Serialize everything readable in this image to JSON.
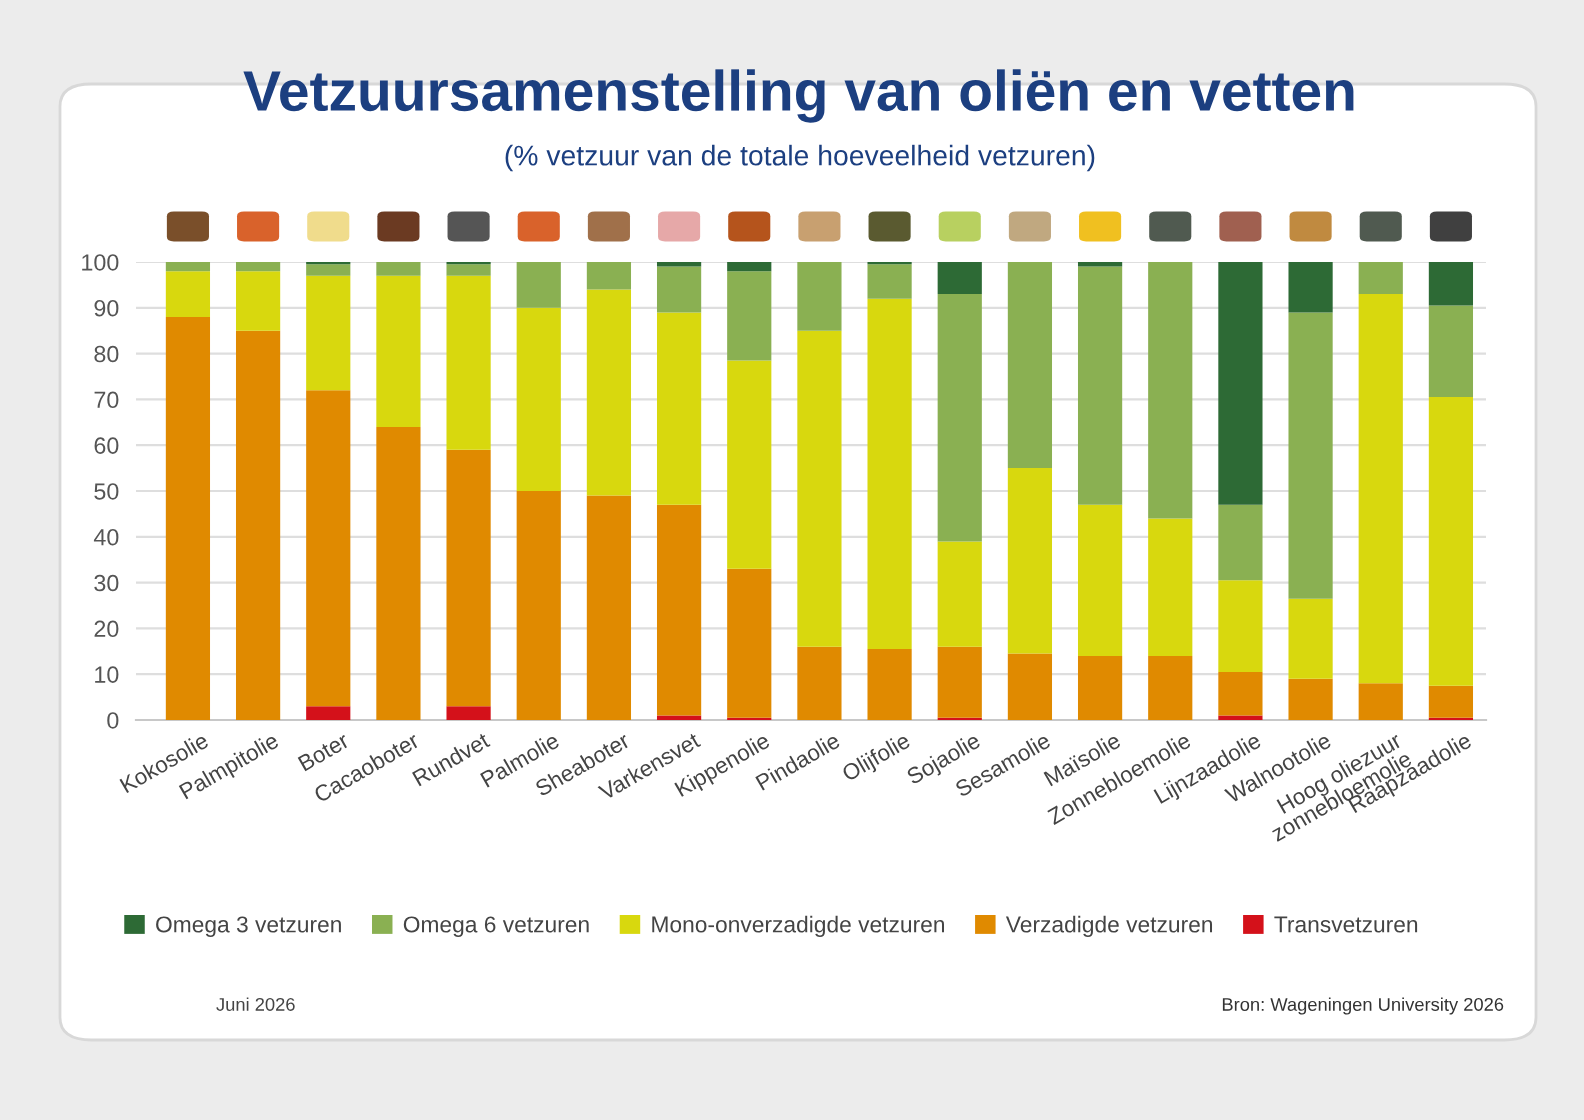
{
  "chart_data": {
    "type": "bar",
    "stacked": true,
    "title": "Vetzuursamenstelling van oliën en vetten",
    "subtitle": "(% vetzuur van de totale hoeveelheid vetzuren)",
    "categories": [
      "Kokosolie",
      "Palmpitolie",
      "Boter",
      "Cacaoboter",
      "Rundvet",
      "Palmolie",
      "Sheaboter",
      "Varkensvet",
      "Kippenolie",
      "Pindaolie",
      "Olijfolie",
      "Sojaolie",
      "Sesamolie",
      "Maïsolie",
      "Zonnebloemolie",
      "Lijnzaadolie",
      "Walnootolie",
      "Hoog oliezuur\nzonnebloemolie",
      "Raapzaadolie"
    ],
    "series": [
      {
        "name": "Transvetzuren",
        "color": "#d4111a",
        "values": [
          0,
          0,
          3,
          0,
          3,
          0,
          0,
          1,
          0.5,
          0,
          0,
          0.5,
          0,
          0,
          0,
          1,
          0,
          0,
          0.5
        ]
      },
      {
        "name": "Verzadigde vetzuren",
        "color": "#e08a00",
        "values": [
          88,
          85,
          69,
          64,
          56,
          50,
          49,
          46,
          32.5,
          16,
          15.5,
          15.5,
          14.5,
          14,
          14,
          9.5,
          9,
          8,
          7
        ]
      },
      {
        "name": "Mono-onverzadigde vetzuren",
        "color": "#d8d80e",
        "values": [
          10,
          13,
          25,
          33,
          38,
          40,
          45,
          42,
          45.5,
          69,
          76.5,
          23,
          40.5,
          33,
          30,
          20,
          17.5,
          85,
          63
        ]
      },
      {
        "name": "Omega 6 vetzuren",
        "color": "#8ab052",
        "values": [
          2,
          2,
          2.5,
          3,
          2.5,
          10,
          6,
          10,
          19.5,
          15,
          7.5,
          54,
          45,
          52,
          56,
          16.5,
          62.5,
          7,
          20
        ]
      },
      {
        "name": "Omega 3 vetzuren",
        "color": "#2d6a35",
        "values": [
          0,
          0,
          0.5,
          0,
          0.5,
          0,
          0,
          1,
          2,
          0,
          0.5,
          7,
          0,
          1,
          0,
          53,
          11,
          0,
          9.5
        ]
      }
    ],
    "ylim": [
      0,
      100
    ],
    "yticks": [
      0,
      10,
      20,
      30,
      40,
      50,
      60,
      70,
      80,
      90,
      100
    ],
    "grid": "y",
    "legend": "bottom",
    "annotations": [
      "Juni 2026",
      "Bron: Wageningen University 2026"
    ]
  }
}
